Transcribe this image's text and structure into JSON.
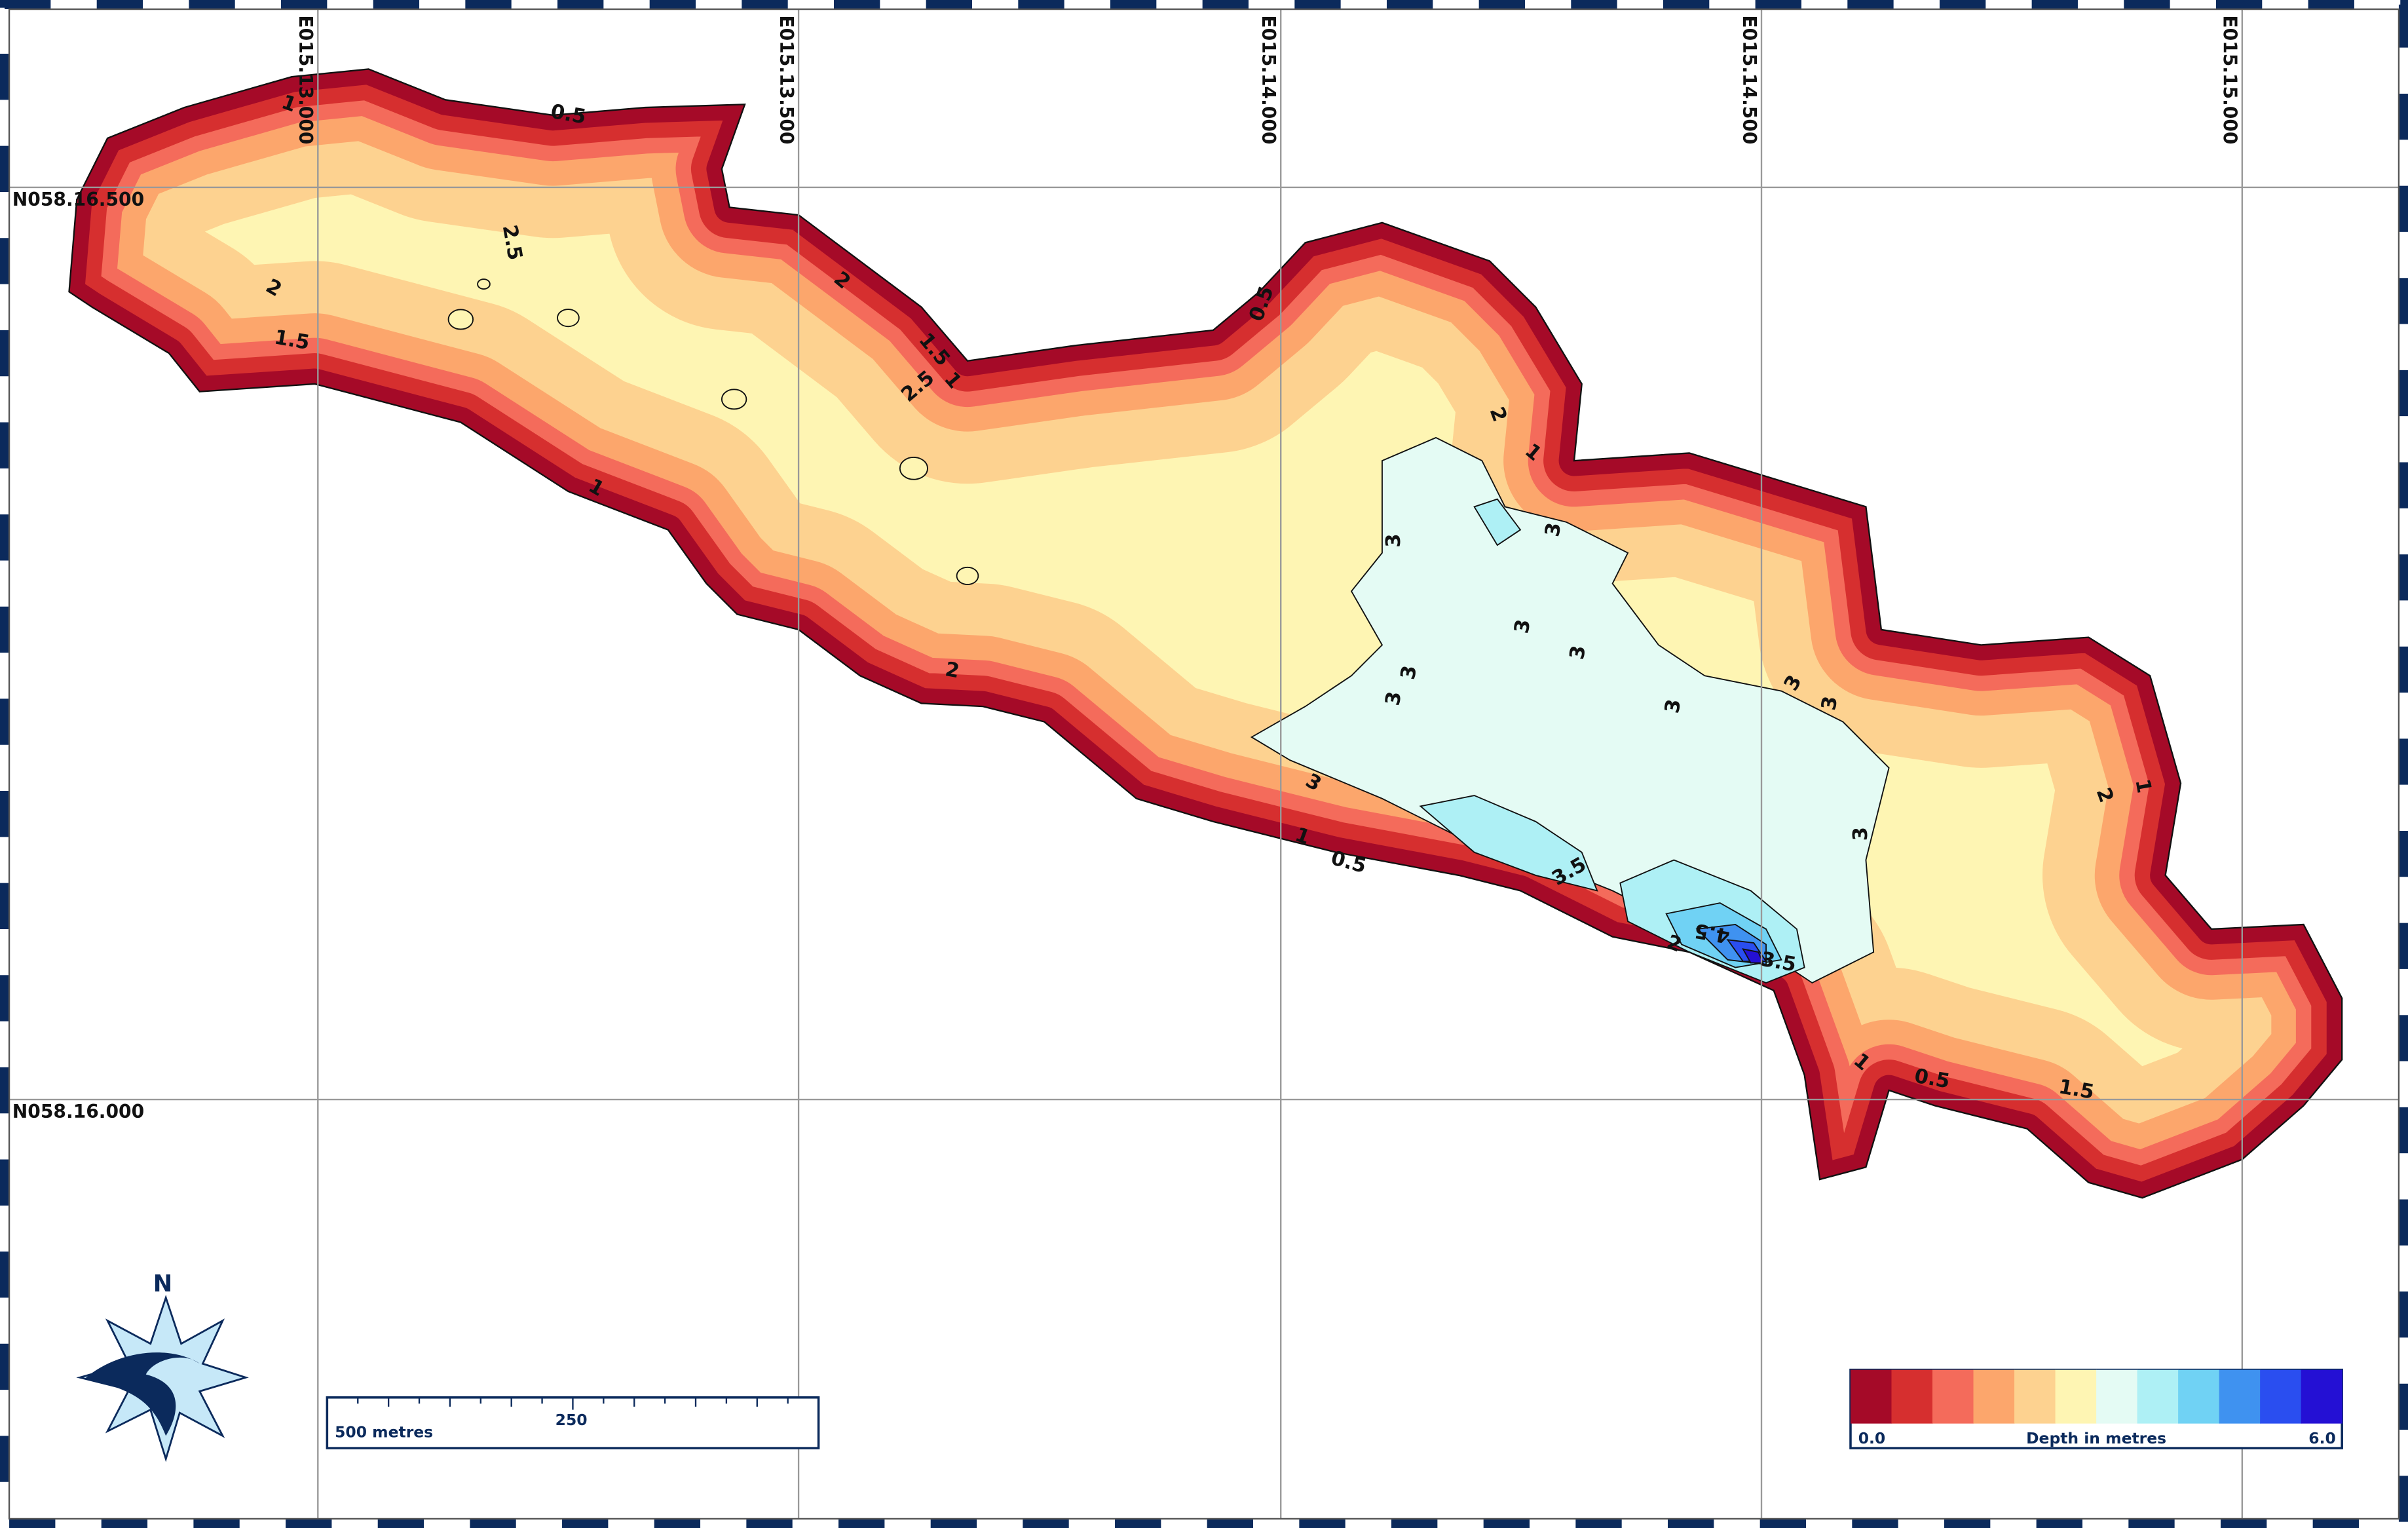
{
  "map": {
    "grid_labels": {
      "longitudes": [
        "E015.13.000",
        "E015.13.500",
        "E015.14.000",
        "E015.14.500",
        "E015.15.000"
      ],
      "latitudes": [
        "N058.16.500",
        "N058.16.000"
      ]
    },
    "contour_labels": [
      "1",
      "0.5",
      "2.5",
      "2",
      "1.5",
      "2",
      "1.5",
      "1",
      "2.5",
      "0.5",
      "2",
      "1",
      "3",
      "3",
      "1",
      "2",
      "3",
      "3",
      "3",
      "3",
      "3",
      "3",
      "3",
      "3",
      "3",
      "1",
      "0.5",
      "3.5",
      "2",
      "1",
      "1",
      "0.5",
      "1.5",
      "4.5",
      "3.5",
      "2"
    ],
    "north": "N",
    "scale_bar": {
      "left_label": "500 metres",
      "mid_label": "250"
    },
    "legend": {
      "min_label": "0.0",
      "title": "Depth in metres",
      "max_label": "6.0",
      "colors": [
        "#a50a28",
        "#d62f2f",
        "#f46b5b",
        "#fca66c",
        "#fdd290",
        "#fef5b3",
        "#e4fbf4",
        "#aef0f5",
        "#70d2f4",
        "#3f92f0",
        "#2a4ef0",
        "#2410d4"
      ]
    }
  }
}
